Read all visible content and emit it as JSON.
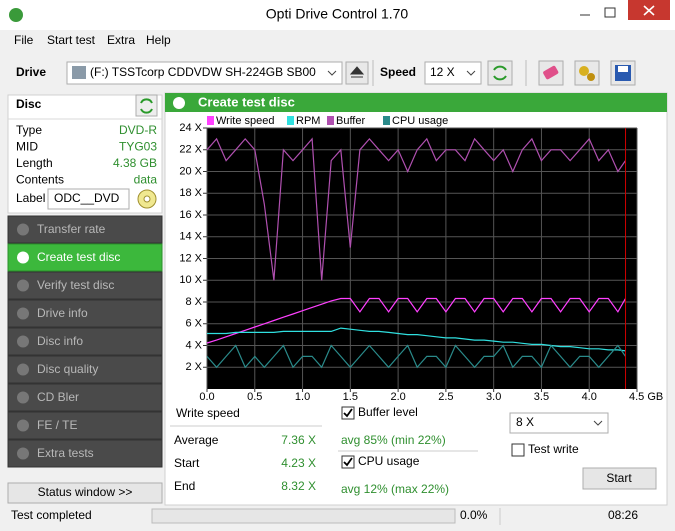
{
  "window": {
    "title": "Opti Drive Control 1.70"
  },
  "menu": [
    "File",
    "Start test",
    "Extra",
    "Help"
  ],
  "toolbar": {
    "drive_label": "Drive",
    "drive": "(F:)  TSSTcorp CDDVDW SH-224GB SB00",
    "speed_label": "Speed",
    "speed": "12 X"
  },
  "disc": {
    "heading": "Disc",
    "rows": [
      [
        "Type",
        "DVD-R"
      ],
      [
        "MID",
        "TYG03"
      ],
      [
        "Length",
        "4.38 GB"
      ],
      [
        "Contents",
        "data"
      ]
    ],
    "label_caption": "Label",
    "label_value": "ODC__DVD"
  },
  "nav": {
    "items": [
      "Transfer rate",
      "Create test disc",
      "Verify test disc",
      "Drive info",
      "Disc info",
      "Disc quality",
      "CD Bler",
      "FE / TE",
      "Extra tests"
    ],
    "selected": 1
  },
  "status_window": "Status window >>",
  "panel": {
    "title": "Create test disc"
  },
  "chart_data": {
    "type": "line",
    "x": [
      0,
      0.1,
      0.2,
      0.3,
      0.4,
      0.5,
      0.6,
      0.7,
      0.8,
      0.9,
      1,
      1.1,
      1.2,
      1.3,
      1.4,
      1.5,
      1.6,
      1.7,
      1.8,
      1.9,
      2,
      2.1,
      2.2,
      2.3,
      2.4,
      2.5,
      2.6,
      2.7,
      2.8,
      2.9,
      3,
      3.1,
      3.2,
      3.3,
      3.4,
      3.5,
      3.6,
      3.7,
      3.8,
      3.9,
      4,
      4.1,
      4.2,
      4.3,
      4.38
    ],
    "series": [
      {
        "name": "Write speed",
        "color": "#ff40ff",
        "values": [
          4.23,
          4.5,
          4.8,
          5.1,
          5.4,
          5.7,
          6.0,
          6.3,
          6.6,
          6.9,
          7.2,
          7.5,
          7.8,
          8.1,
          8.32,
          8.32,
          7.1,
          8.32,
          8.32,
          7.1,
          8.32,
          8.32,
          7.1,
          8.32,
          8.32,
          7.1,
          8.32,
          8.32,
          7.1,
          8.32,
          8.32,
          7.1,
          8.32,
          8.32,
          7.1,
          8.32,
          8.32,
          7.1,
          8.32,
          8.32,
          7.1,
          8.32,
          8.32,
          7.1,
          8.32
        ]
      },
      {
        "name": "RPM",
        "color": "#30e0e0",
        "values": [
          5.1,
          5.1,
          5.1,
          5.2,
          5.2,
          5.2,
          5.2,
          5.2,
          5.3,
          5.3,
          5.3,
          5.3,
          5.3,
          5.3,
          5.6,
          5.5,
          5.4,
          5.3,
          5.3,
          5.2,
          5.1,
          5.0,
          5.0,
          4.9,
          4.8,
          4.7,
          4.7,
          4.6,
          4.5,
          4.5,
          4.4,
          4.3,
          4.3,
          4.2,
          4.1,
          4.1,
          4.0,
          3.9,
          3.9,
          3.8,
          3.7,
          3.7,
          3.6,
          3.6,
          3.5
        ]
      },
      {
        "name": "Buffer",
        "color": "#b050b0",
        "values": [
          22,
          23,
          21,
          22,
          23,
          22,
          17,
          10,
          22,
          21,
          22,
          23,
          10,
          21,
          22,
          13,
          22,
          23,
          22,
          21,
          22,
          20,
          22,
          23,
          21,
          22,
          22,
          21,
          23,
          22,
          21,
          22,
          20,
          22,
          23,
          21,
          22,
          22,
          21,
          22,
          23,
          21,
          22,
          20,
          21
        ]
      },
      {
        "name": "CPU usage",
        "color": "#2a8a8a",
        "values": [
          3,
          2,
          3,
          4,
          2,
          3,
          2,
          3,
          4,
          2,
          3,
          3,
          2,
          4,
          3,
          2,
          3,
          4,
          3,
          2,
          3,
          4,
          2,
          3,
          3,
          2,
          4,
          3,
          2,
          3,
          3,
          4,
          2,
          3,
          3,
          2,
          4,
          3,
          2,
          3,
          3,
          2,
          3,
          4,
          3
        ]
      }
    ],
    "xlim": [
      0,
      4.5
    ],
    "xticks": [
      {
        "value": 0,
        "label": "0.0"
      },
      0.5,
      {
        "value": 1,
        "label": "1.0"
      },
      1.5,
      {
        "value": 2,
        "label": "2.0"
      },
      2.5,
      {
        "value": 3,
        "label": "3.0"
      },
      3.5,
      {
        "value": 4,
        "label": "4.0"
      },
      {
        "value": 4.5,
        "label": "4.5 GB"
      }
    ],
    "ylim": [
      0,
      24
    ],
    "yticks": [
      {
        "value": 2,
        "label": "2 X"
      },
      {
        "value": 4,
        "label": "4 X"
      },
      {
        "value": 6,
        "label": "6 X"
      },
      {
        "value": 8,
        "label": "8 X"
      },
      {
        "value": 10,
        "label": "10 X"
      },
      {
        "value": 12,
        "label": "12 X"
      },
      {
        "value": 14,
        "label": "14 X"
      },
      {
        "value": 16,
        "label": "16 X"
      },
      {
        "value": 18,
        "label": "18 X"
      },
      {
        "value": 20,
        "label": "20 X"
      },
      {
        "value": 22,
        "label": "22 X"
      },
      {
        "value": 24,
        "label": "24 X"
      }
    ],
    "grid": true,
    "marker_x": 4.38,
    "marker_color": "#d00000"
  },
  "stats": {
    "heading": "Write speed",
    "rows": [
      [
        "Average",
        "7.36 X"
      ],
      [
        "Start",
        "4.23 X"
      ],
      [
        "End",
        "8.32 X"
      ]
    ]
  },
  "options": {
    "buffer_level": {
      "label": "Buffer level",
      "checked": true,
      "stat": "avg 85% (min 22%)"
    },
    "cpu_usage": {
      "label": "CPU usage",
      "checked": true,
      "stat": "avg 12% (max 22%)"
    },
    "speed": "8 X",
    "test_write": {
      "label": "Test write",
      "checked": false
    },
    "start": "Start"
  },
  "statusbar": {
    "text": "Test completed",
    "progress": "0.0%",
    "time": "08:26"
  }
}
